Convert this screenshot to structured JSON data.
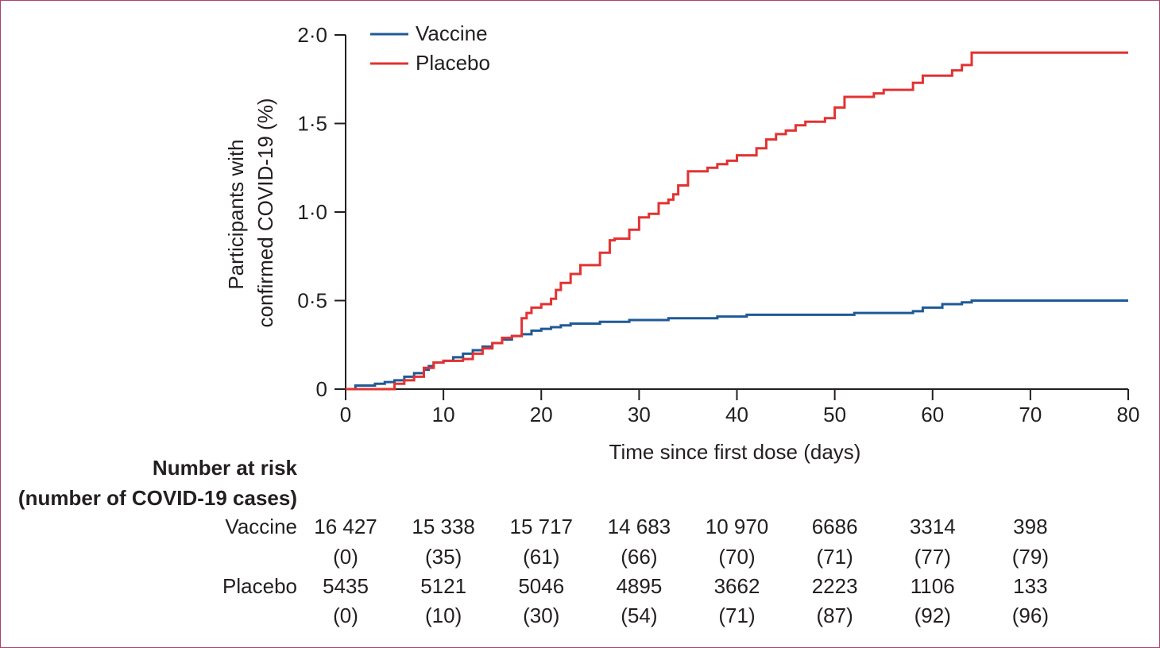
{
  "colors": {
    "vaccine": "#1f5a96",
    "placebo": "#e33232",
    "axis": "#231f20"
  },
  "chart_data": {
    "type": "line",
    "step": true,
    "title": "",
    "xlabel": "Time since first dose (days)",
    "ylabel_line1": "Participants with",
    "ylabel_line2": "confirmed COVID-19 (%)",
    "xlim": [
      0,
      80
    ],
    "ylim": [
      0,
      2.0
    ],
    "x_ticks": [
      "0",
      "10",
      "20",
      "30",
      "40",
      "50",
      "60",
      "70",
      "80"
    ],
    "x_tick_values": [
      0,
      10,
      20,
      30,
      40,
      50,
      60,
      70,
      80
    ],
    "y_ticks": [
      "0",
      "0·5",
      "1·0",
      "1·5",
      "2·0"
    ],
    "y_tick_values": [
      0,
      0.5,
      1.0,
      1.5,
      2.0
    ],
    "grid": false,
    "legend_position": "top-left",
    "series": [
      {
        "name": "Vaccine",
        "color": "#1f5a96",
        "points": [
          [
            0,
            0
          ],
          [
            1,
            0.02
          ],
          [
            3,
            0.03
          ],
          [
            4,
            0.04
          ],
          [
            5,
            0.05
          ],
          [
            6,
            0.07
          ],
          [
            7,
            0.09
          ],
          [
            8,
            0.11
          ],
          [
            8.5,
            0.13
          ],
          [
            9,
            0.15
          ],
          [
            10,
            0.16
          ],
          [
            11,
            0.18
          ],
          [
            12,
            0.2
          ],
          [
            13,
            0.22
          ],
          [
            14,
            0.24
          ],
          [
            15,
            0.26
          ],
          [
            16,
            0.28
          ],
          [
            17,
            0.3
          ],
          [
            18,
            0.31
          ],
          [
            19,
            0.33
          ],
          [
            20,
            0.34
          ],
          [
            21,
            0.35
          ],
          [
            22,
            0.36
          ],
          [
            23,
            0.37
          ],
          [
            26,
            0.38
          ],
          [
            29,
            0.39
          ],
          [
            33,
            0.4
          ],
          [
            38,
            0.41
          ],
          [
            41,
            0.42
          ],
          [
            52,
            0.43
          ],
          [
            55,
            0.43
          ],
          [
            58,
            0.44
          ],
          [
            59,
            0.46
          ],
          [
            61,
            0.48
          ],
          [
            63,
            0.49
          ],
          [
            64,
            0.5
          ],
          [
            80,
            0.5
          ]
        ]
      },
      {
        "name": "Placebo",
        "color": "#e33232",
        "points": [
          [
            0,
            0
          ],
          [
            5,
            0.03
          ],
          [
            6,
            0.05
          ],
          [
            7,
            0.07
          ],
          [
            8,
            0.12
          ],
          [
            9,
            0.15
          ],
          [
            10,
            0.16
          ],
          [
            12,
            0.17
          ],
          [
            13,
            0.2
          ],
          [
            14,
            0.23
          ],
          [
            15,
            0.26
          ],
          [
            16,
            0.29
          ],
          [
            17,
            0.3
          ],
          [
            18,
            0.4
          ],
          [
            18.5,
            0.43
          ],
          [
            19,
            0.46
          ],
          [
            20,
            0.48
          ],
          [
            21,
            0.51
          ],
          [
            21.5,
            0.56
          ],
          [
            22,
            0.6
          ],
          [
            23,
            0.65
          ],
          [
            24,
            0.7
          ],
          [
            26,
            0.77
          ],
          [
            27,
            0.84
          ],
          [
            27.5,
            0.85
          ],
          [
            29,
            0.9
          ],
          [
            30,
            0.97
          ],
          [
            31,
            0.99
          ],
          [
            32,
            1.05
          ],
          [
            33,
            1.07
          ],
          [
            33.5,
            1.1
          ],
          [
            34,
            1.15
          ],
          [
            35,
            1.23
          ],
          [
            37,
            1.25
          ],
          [
            38,
            1.27
          ],
          [
            39,
            1.29
          ],
          [
            40,
            1.32
          ],
          [
            42,
            1.36
          ],
          [
            43,
            1.41
          ],
          [
            44,
            1.44
          ],
          [
            45,
            1.46
          ],
          [
            46,
            1.49
          ],
          [
            47,
            1.51
          ],
          [
            49,
            1.53
          ],
          [
            50,
            1.59
          ],
          [
            51,
            1.65
          ],
          [
            54,
            1.67
          ],
          [
            55,
            1.69
          ],
          [
            58,
            1.73
          ],
          [
            59,
            1.77
          ],
          [
            62,
            1.8
          ],
          [
            63,
            1.83
          ],
          [
            64,
            1.9
          ],
          [
            80,
            1.9
          ]
        ]
      }
    ]
  },
  "risk_table": {
    "title_line1": "Number at risk",
    "title_line2": "(number of COVID-19 cases)",
    "rows": [
      {
        "label": "Vaccine",
        "at_risk": [
          "16 427",
          "15 338",
          "15 717",
          "14 683",
          "10 970",
          "6686",
          "3314",
          "398"
        ],
        "cases": [
          "(0)",
          "(35)",
          "(61)",
          "(66)",
          "(70)",
          "(71)",
          "(77)",
          "(79)"
        ]
      },
      {
        "label": "Placebo",
        "at_risk": [
          "5435",
          "5121",
          "5046",
          "4895",
          "3662",
          "2223",
          "1106",
          "133"
        ],
        "cases": [
          "(0)",
          "(10)",
          "(30)",
          "(54)",
          "(71)",
          "(87)",
          "(92)",
          "(96)"
        ]
      }
    ]
  }
}
